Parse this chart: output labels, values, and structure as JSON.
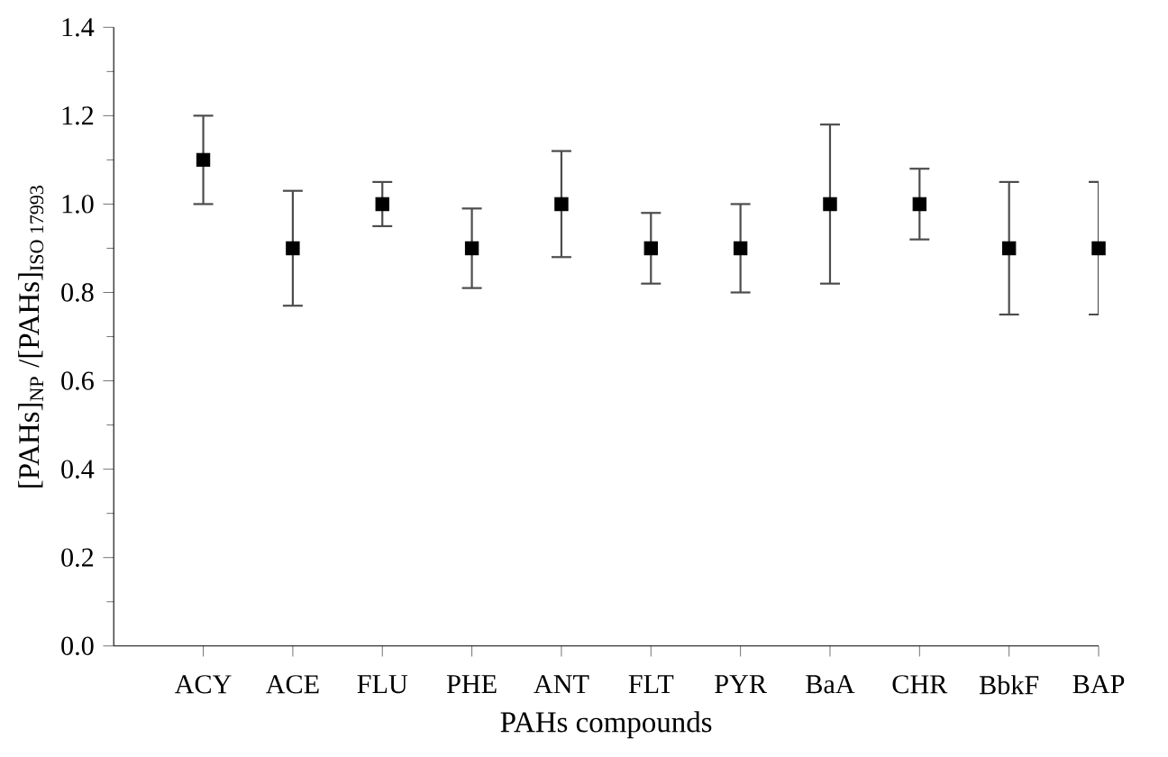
{
  "chart_data": {
    "type": "scatter",
    "xlabel": "PAHs compounds",
    "ylabel": "[PAHs]$_{NP}$ /[PAHs]$_{ISO 17993}$",
    "categories": [
      "ACY",
      "ACE",
      "FLU",
      "PHE",
      "ANT",
      "FLT",
      "PYR",
      "BaA",
      "CHR",
      "BbkF",
      "BAP"
    ],
    "values": [
      1.1,
      0.9,
      1.0,
      0.9,
      1.0,
      0.9,
      0.9,
      1.0,
      1.0,
      0.9,
      0.9
    ],
    "errors": [
      [
        1.0,
        1.2
      ],
      [
        0.77,
        1.03
      ],
      [
        0.95,
        1.05
      ],
      [
        0.81,
        0.99
      ],
      [
        0.88,
        1.12
      ],
      [
        0.82,
        0.98
      ],
      [
        0.8,
        1.0
      ],
      [
        0.82,
        1.18
      ],
      [
        0.92,
        1.08
      ],
      [
        0.75,
        1.05
      ],
      [
        0.75,
        1.05
      ]
    ],
    "color": "#000000",
    "marker": "square",
    "grid": false,
    "ylim": [
      0,
      1.4
    ],
    "yticks": [
      {
        "value": 0,
        "label": "0.0"
      },
      0.2,
      0.4,
      0.6,
      0.8,
      {
        "value": 1,
        "label": "1.0"
      },
      1.2,
      1.4
    ]
  }
}
